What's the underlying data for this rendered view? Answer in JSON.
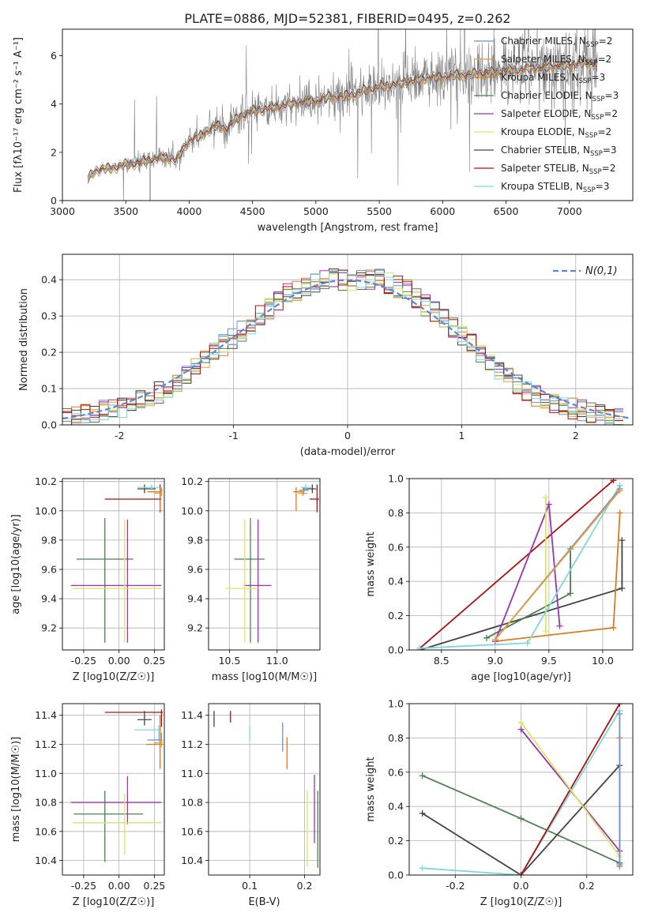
{
  "figure_title": "PLATE=0886, MJD=52381, FIBERID=0495, z=0.262",
  "colors": {
    "chabrier_miles": "#6a8fd8",
    "salpeter_miles": "#e8a13a",
    "kroupa_miles": "#e07a18",
    "chabrier_elodie": "#4d8050",
    "salpeter_elodie": "#9b33b5",
    "kroupa_elodie": "#d9e660",
    "chabrier_stelib": "#444444",
    "salpeter_stelib": "#b01010",
    "kroupa_stelib": "#7fd8d8",
    "data": "#808080",
    "normal": "#5b86d6"
  },
  "legend_models": [
    {
      "text": "Chabrier MILES, N",
      "sub": "SSP",
      "suffix": "=2",
      "color": "#6a8fd8"
    },
    {
      "text": "Salpeter MILES, N",
      "sub": "SSP",
      "suffix": "=2",
      "color": "#e8a13a"
    },
    {
      "text": "Kroupa MILES, N",
      "sub": "SSP",
      "suffix": "=3",
      "color": "#e07a18"
    },
    {
      "text": "Chabrier ELODIE, N",
      "sub": "SSP",
      "suffix": "=3",
      "color": "#4d8050"
    },
    {
      "text": "Salpeter ELODIE, N",
      "sub": "SSP",
      "suffix": "=2",
      "color": "#9b33b5"
    },
    {
      "text": "Kroupa ELODIE, N",
      "sub": "SSP",
      "suffix": "=2",
      "color": "#d9e660"
    },
    {
      "text": "Chabrier STELIB, N",
      "sub": "SSP",
      "suffix": "=3",
      "color": "#444444"
    },
    {
      "text": "Salpeter STELIB, N",
      "sub": "SSP",
      "suffix": "=2",
      "color": "#b01010"
    },
    {
      "text": "Kroupa STELIB, N",
      "sub": "SSP",
      "suffix": "=3",
      "color": "#7fd8d8"
    }
  ],
  "chart_data": [
    {
      "id": "spectrum",
      "type": "line",
      "xlabel": "wavelength [Angstrom, rest frame]",
      "ylabel": "Flux [fλ10⁻¹⁷ erg cm⁻² s⁻¹ A⁻¹]",
      "xlim": [
        3000,
        7500
      ],
      "ylim": [
        0,
        7.1
      ],
      "xticks": [
        3000,
        3500,
        4000,
        4500,
        5000,
        5500,
        6000,
        6500,
        7000
      ],
      "yticks": [
        0,
        2,
        4,
        6
      ],
      "model_continuum": {
        "x": [
          3200,
          3250,
          3300,
          3400,
          3500,
          3600,
          3700,
          3800,
          3900,
          4000,
          4100,
          4200,
          4300,
          4400,
          4500,
          4600,
          4700,
          4800,
          4900,
          5000,
          5100,
          5200,
          5300,
          5400,
          5500,
          5600,
          5700,
          5800,
          5900,
          6000,
          6100,
          6200,
          6300,
          6400,
          6500,
          6600,
          6700,
          6800,
          6900,
          7000,
          7100,
          7200
        ],
        "y": [
          0.9,
          1.2,
          1.3,
          1.35,
          1.5,
          1.55,
          1.7,
          1.8,
          1.7,
          2.5,
          2.7,
          3.1,
          3.0,
          3.5,
          3.7,
          3.8,
          3.9,
          4.0,
          4.1,
          4.1,
          4.3,
          4.3,
          4.4,
          4.6,
          4.7,
          4.8,
          4.9,
          5.0,
          5.1,
          5.1,
          5.2,
          5.2,
          5.3,
          5.3,
          5.4,
          5.4,
          5.5,
          5.5,
          5.6,
          5.6,
          5.7,
          5.7
        ]
      }
    },
    {
      "id": "residuals",
      "type": "histogram",
      "xlabel": "(data-model)/error",
      "ylabel": "Normed distribution",
      "xlim": [
        -2.5,
        2.5
      ],
      "ylim": [
        0,
        0.47
      ],
      "xticks": [
        -2,
        -1,
        0,
        1,
        2
      ],
      "yticks": [
        0.0,
        0.1,
        0.2,
        0.3,
        0.4
      ],
      "legend": "N(0,1)",
      "bin_width": 0.1,
      "bins_start": -2.5,
      "envelope": [
        0.02,
        0.025,
        0.03,
        0.035,
        0.04,
        0.045,
        0.05,
        0.06,
        0.07,
        0.08,
        0.09,
        0.1,
        0.12,
        0.14,
        0.16,
        0.18,
        0.2,
        0.22,
        0.24,
        0.26,
        0.28,
        0.3,
        0.32,
        0.34,
        0.36,
        0.37,
        0.38,
        0.39,
        0.4,
        0.4,
        0.4,
        0.4,
        0.4,
        0.4,
        0.4,
        0.39,
        0.38,
        0.37,
        0.35,
        0.33,
        0.31,
        0.29,
        0.27,
        0.25,
        0.22,
        0.2,
        0.17,
        0.15,
        0.13,
        0.11,
        0.09,
        0.08,
        0.07,
        0.06,
        0.05,
        0.045,
        0.04,
        0.035,
        0.03,
        0.025,
        0.02,
        0.02
      ]
    },
    {
      "id": "age_vs_Z",
      "type": "errorbar",
      "xlabel": "Z [log10(Z/Z☉)]",
      "ylabel": "age  [log10(age/yr)]",
      "xlim": [
        -0.4,
        0.32
      ],
      "ylim": [
        9.05,
        10.22
      ],
      "xticks": [
        -0.25,
        0.0,
        0.25
      ],
      "yticks": [
        9.2,
        9.4,
        9.6,
        9.8,
        10.0,
        10.2
      ],
      "points": [
        {
          "model": "chabrier_elodie",
          "x": -0.1,
          "y": 9.67,
          "xerr": [
            0.2,
            0.2
          ],
          "yerr": [
            0.57,
            0.28
          ]
        },
        {
          "model": "salpeter_elodie",
          "x": 0.06,
          "y": 9.49,
          "xerr": [
            0.4,
            0.24
          ],
          "yerr": [
            0.39,
            0.45
          ]
        },
        {
          "model": "kroupa_elodie",
          "x": 0.04,
          "y": 9.47,
          "xerr": [
            0.37,
            0.26
          ],
          "yerr": [
            0.37,
            0.47
          ]
        },
        {
          "model": "salpeter_stelib",
          "x": 0.29,
          "y": 10.08,
          "xerr": [
            0.39,
            0.01
          ],
          "yerr": [
            0.09,
            0.1
          ]
        },
        {
          "model": "chabrier_stelib",
          "x": 0.18,
          "y": 10.15,
          "xerr": [
            0.05,
            0.08
          ],
          "yerr": [
            0.03,
            0.03
          ]
        },
        {
          "model": "kroupa_stelib",
          "x": 0.23,
          "y": 10.16,
          "xerr": [
            0.1,
            0.06
          ],
          "yerr": [
            0.02,
            0.02
          ]
        },
        {
          "model": "kroupa_miles",
          "x": 0.29,
          "y": 10.13,
          "xerr": [
            0.09,
            0.01
          ],
          "yerr": [
            0.13,
            0.03
          ]
        },
        {
          "model": "chabrier_miles",
          "x": 0.3,
          "y": 10.14,
          "xerr": [
            0.01,
            0.01
          ],
          "yerr": [
            0.03,
            0.02
          ]
        },
        {
          "model": "salpeter_miles",
          "x": 0.3,
          "y": 10.12,
          "xerr": [
            0.05,
            0.01
          ],
          "yerr": [
            0.02,
            0.03
          ]
        }
      ]
    },
    {
      "id": "age_vs_mass",
      "type": "errorbar",
      "xlabel": "mass [log10(M/M☉)]",
      "ylabel": "",
      "xlim": [
        10.28,
        11.45
      ],
      "ylim": [
        9.05,
        10.22
      ],
      "xticks": [
        10.5,
        11.0
      ],
      "yticks": [
        9.2,
        9.4,
        9.6,
        9.8,
        10.0,
        10.2
      ],
      "points": [
        {
          "model": "chabrier_elodie",
          "x": 10.72,
          "y": 9.67,
          "xerr": [
            0.17,
            0.15
          ],
          "yerr": [
            0.57,
            0.28
          ]
        },
        {
          "model": "salpeter_elodie",
          "x": 10.8,
          "y": 9.49,
          "xerr": [
            0.15,
            0.14
          ],
          "yerr": [
            0.39,
            0.45
          ]
        },
        {
          "model": "kroupa_elodie",
          "x": 10.66,
          "y": 9.47,
          "xerr": [
            0.2,
            0.14
          ],
          "yerr": [
            0.37,
            0.47
          ]
        },
        {
          "model": "salpeter_stelib",
          "x": 11.42,
          "y": 10.08,
          "xerr": [
            0.08,
            0.02
          ],
          "yerr": [
            0.09,
            0.1
          ]
        },
        {
          "model": "chabrier_stelib",
          "x": 11.37,
          "y": 10.15,
          "xerr": [
            0.1,
            0.04
          ],
          "yerr": [
            0.03,
            0.03
          ]
        },
        {
          "model": "kroupa_stelib",
          "x": 11.3,
          "y": 10.16,
          "xerr": [
            0.05,
            0.06
          ],
          "yerr": [
            0.02,
            0.02
          ]
        },
        {
          "model": "kroupa_miles",
          "x": 11.2,
          "y": 10.13,
          "xerr": [
            0.03,
            0.08
          ],
          "yerr": [
            0.13,
            0.03
          ]
        },
        {
          "model": "chabrier_miles",
          "x": 11.28,
          "y": 10.14,
          "xerr": [
            0.05,
            0.05
          ],
          "yerr": [
            0.03,
            0.02
          ]
        },
        {
          "model": "salpeter_miles",
          "x": 11.27,
          "y": 10.12,
          "xerr": [
            0.05,
            0.05
          ],
          "yerr": [
            0.02,
            0.03
          ]
        }
      ]
    },
    {
      "id": "weight_vs_age",
      "type": "line",
      "xlabel": "age  [log10(age/yr)]",
      "ylabel": "mass weight",
      "xlim": [
        8.2,
        10.28
      ],
      "ylim": [
        0,
        1.0
      ],
      "xticks": [
        8.5,
        9.0,
        9.5,
        10.0
      ],
      "yticks": [
        0.0,
        0.2,
        0.4,
        0.6,
        0.8,
        1.0
      ],
      "series": [
        {
          "model": "salpeter_stelib",
          "x": [
            8.3,
            10.1
          ],
          "y": [
            0.01,
            0.99
          ]
        },
        {
          "model": "chabrier_stelib",
          "x": [
            8.3,
            10.18,
            10.18
          ],
          "y": [
            0.0,
            0.36,
            0.64
          ]
        },
        {
          "model": "kroupa_miles",
          "x": [
            9.0,
            10.1,
            10.16
          ],
          "y": [
            0.05,
            0.13,
            0.8
          ]
        },
        {
          "model": "chabrier_elodie",
          "x": [
            8.92,
            9.7,
            9.7
          ],
          "y": [
            0.07,
            0.33,
            0.59
          ]
        },
        {
          "model": "salpeter_elodie",
          "x": [
            9.0,
            9.5,
            9.6
          ],
          "y": [
            0.05,
            0.85,
            0.14
          ]
        },
        {
          "model": "kroupa_elodie",
          "x": [
            9.47,
            9.47
          ],
          "y": [
            0.11,
            0.89
          ]
        },
        {
          "model": "kroupa_stelib",
          "x": [
            8.3,
            9.3,
            10.16
          ],
          "y": [
            0.01,
            0.04,
            0.96
          ]
        },
        {
          "model": "chabrier_miles",
          "x": [
            9.0,
            10.16
          ],
          "y": [
            0.06,
            0.94
          ]
        },
        {
          "model": "salpeter_miles",
          "x": [
            9.0,
            10.16
          ],
          "y": [
            0.06,
            0.93
          ]
        }
      ]
    },
    {
      "id": "mass_vs_Z",
      "type": "errorbar",
      "xlabel": "Z [log10(Z/Z☉)]",
      "ylabel": "mass [log10(M/M☉)]",
      "xlim": [
        -0.4,
        0.32
      ],
      "ylim": [
        10.3,
        11.48
      ],
      "xticks": [
        -0.25,
        0.0,
        0.25
      ],
      "yticks": [
        10.4,
        10.6,
        10.8,
        11.0,
        11.2,
        11.4
      ],
      "points": [
        {
          "model": "chabrier_elodie",
          "x": -0.1,
          "y": 10.72,
          "xerr": [
            0.22,
            0.27
          ],
          "yerr": [
            0.33,
            0.16
          ]
        },
        {
          "model": "salpeter_elodie",
          "x": 0.06,
          "y": 10.8,
          "xerr": [
            0.4,
            0.24
          ],
          "yerr": [
            0.15,
            0.18
          ]
        },
        {
          "model": "kroupa_elodie",
          "x": 0.04,
          "y": 10.66,
          "xerr": [
            0.37,
            0.26
          ],
          "yerr": [
            0.22,
            0.2
          ]
        },
        {
          "model": "salpeter_stelib",
          "x": 0.3,
          "y": 11.42,
          "xerr": [
            0.4,
            0.01
          ],
          "yerr": [
            0.1,
            0.02
          ]
        },
        {
          "model": "chabrier_stelib",
          "x": 0.18,
          "y": 11.37,
          "xerr": [
            0.05,
            0.05
          ],
          "yerr": [
            0.04,
            0.06
          ]
        },
        {
          "model": "kroupa_stelib",
          "x": 0.28,
          "y": 11.3,
          "xerr": [
            0.17,
            0.02
          ],
          "yerr": [
            0.08,
            0.03
          ]
        },
        {
          "model": "kroupa_miles",
          "x": 0.29,
          "y": 11.2,
          "xerr": [
            0.1,
            0.02
          ],
          "yerr": [
            0.17,
            0.2
          ]
        },
        {
          "model": "chabrier_miles",
          "x": 0.3,
          "y": 11.23,
          "xerr": [
            0.1,
            0.01
          ],
          "yerr": [
            0.03,
            0.05
          ]
        },
        {
          "model": "salpeter_miles",
          "x": 0.3,
          "y": 11.21,
          "xerr": [
            0.05,
            0.01
          ],
          "yerr": [
            0.03,
            0.03
          ]
        }
      ]
    },
    {
      "id": "mass_vs_EBV",
      "type": "errorbar",
      "xlabel": "E(B-V)",
      "ylabel": "",
      "xlim": [
        0.025,
        0.228
      ],
      "ylim": [
        10.3,
        11.48
      ],
      "xticks": [
        0.1,
        0.2
      ],
      "yticks": [
        10.4,
        10.6,
        10.8,
        11.0,
        11.2,
        11.4
      ],
      "points": [
        {
          "model": "chabrier_stelib",
          "x": 0.035,
          "y": 11.37,
          "xerr": [
            0,
            0
          ],
          "yerr": [
            0.05,
            0.06
          ]
        },
        {
          "model": "salpeter_stelib",
          "x": 0.065,
          "y": 11.38,
          "xerr": [
            0,
            0
          ],
          "yerr": [
            0.03,
            0.05
          ]
        },
        {
          "model": "kroupa_stelib",
          "x": 0.1,
          "y": 11.29,
          "xerr": [
            0,
            0
          ],
          "yerr": [
            0.06,
            0.04
          ]
        },
        {
          "model": "chabrier_miles",
          "x": 0.16,
          "y": 11.23,
          "xerr": [
            0,
            0
          ],
          "yerr": [
            0.08,
            0.12
          ]
        },
        {
          "model": "kroupa_miles",
          "x": 0.168,
          "y": 11.13,
          "xerr": [
            0,
            0
          ],
          "yerr": [
            0.1,
            0.12
          ]
        },
        {
          "model": "kroupa_elodie",
          "x": 0.205,
          "y": 10.66,
          "xerr": [
            0,
            0
          ],
          "yerr": [
            0.3,
            0.22
          ]
        },
        {
          "model": "salpeter_elodie",
          "x": 0.218,
          "y": 10.75,
          "xerr": [
            0,
            0
          ],
          "yerr": [
            0.23,
            0.24
          ]
        },
        {
          "model": "chabrier_elodie",
          "x": 0.224,
          "y": 10.62,
          "xerr": [
            0,
            0
          ],
          "yerr": [
            0.27,
            0.26
          ]
        }
      ]
    },
    {
      "id": "weight_vs_Z",
      "type": "line",
      "xlabel": "Z [log10(Z/Z☉)]",
      "ylabel": "mass weight",
      "xlim": [
        -0.34,
        0.34
      ],
      "ylim": [
        0,
        1.0
      ],
      "xticks": [
        -0.2,
        0.0,
        0.2
      ],
      "yticks": [
        0.0,
        0.2,
        0.4,
        0.6,
        0.8,
        1.0
      ],
      "series": [
        {
          "model": "chabrier_elodie",
          "x": [
            -0.3,
            0.0,
            0.3
          ],
          "y": [
            0.58,
            0.33,
            0.07
          ]
        },
        {
          "model": "chabrier_stelib",
          "x": [
            -0.3,
            0.0,
            0.3
          ],
          "y": [
            0.36,
            0.0,
            0.64
          ]
        },
        {
          "model": "kroupa_stelib",
          "x": [
            -0.3,
            0.0,
            0.3
          ],
          "y": [
            0.04,
            0.0,
            0.96
          ]
        },
        {
          "model": "salpeter_stelib",
          "x": [
            0.0,
            0.3
          ],
          "y": [
            0.0,
            1.0
          ]
        },
        {
          "model": "salpeter_elodie",
          "x": [
            0.0,
            0.3
          ],
          "y": [
            0.85,
            0.14
          ]
        },
        {
          "model": "kroupa_elodie",
          "x": [
            0.0,
            0.3
          ],
          "y": [
            0.89,
            0.11
          ]
        },
        {
          "model": "kroupa_miles",
          "x": [
            0.3,
            0.3
          ],
          "y": [
            0.05,
            0.8
          ]
        },
        {
          "model": "chabrier_miles",
          "x": [
            0.3,
            0.3
          ],
          "y": [
            0.06,
            0.94
          ]
        }
      ]
    }
  ]
}
